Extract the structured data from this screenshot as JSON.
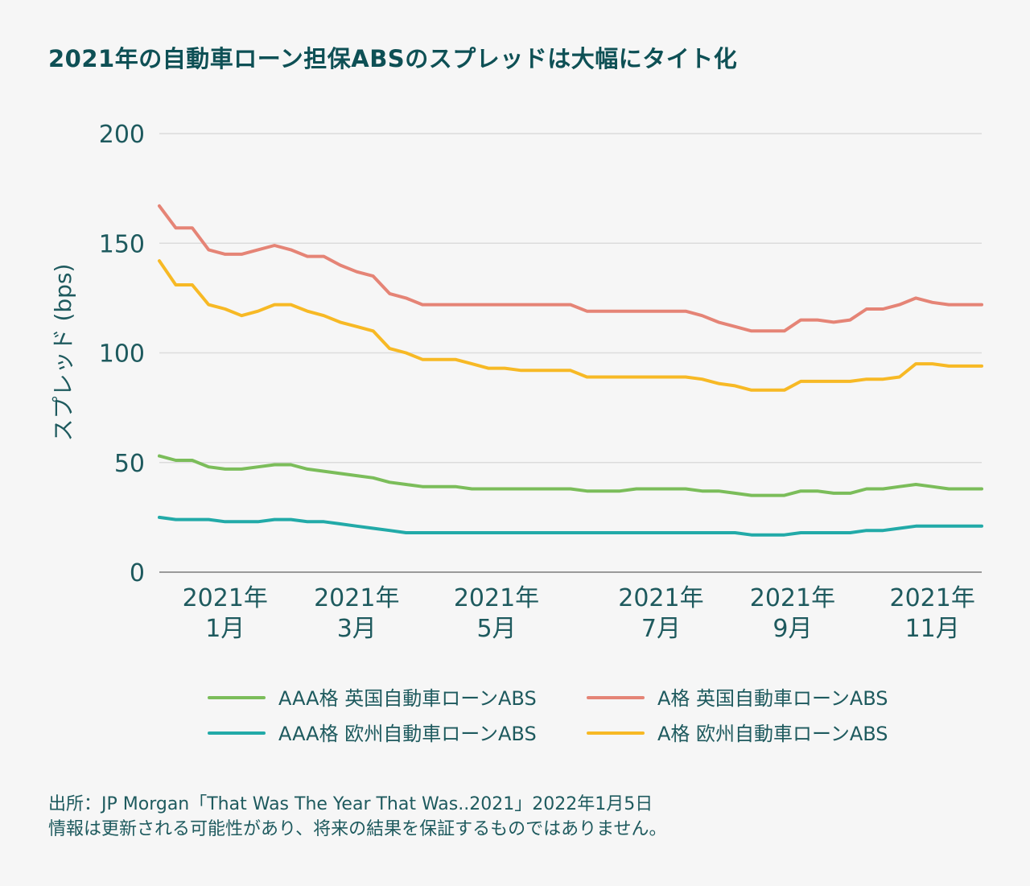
{
  "title": "2021年の自動車ローン担保ABSのスプレッドは大幅にタイト化",
  "source": {
    "line1": "出所：JP Morgan「That Was The Year That Was..2021」2022年1月5日",
    "line2": "情報は更新される可能性があり、将来の結果を保証するものではありません。"
  },
  "chart_data": {
    "type": "line",
    "title": "2021年の自動車ローン担保ABSのスプレッドは大幅にタイト化",
    "ylabel": "スプレッド (bps)",
    "xlabel": "",
    "ylim": [
      0,
      200
    ],
    "yticks": [
      "0",
      "50",
      "100",
      "150",
      "200"
    ],
    "x_range": [
      0,
      50
    ],
    "xticks": [
      {
        "x": 4,
        "line1": "2021年",
        "line2": "1月"
      },
      {
        "x": 12,
        "line1": "2021年",
        "line2": "3月"
      },
      {
        "x": 20.5,
        "line1": "2021年",
        "line2": "5月"
      },
      {
        "x": 30.5,
        "line1": "2021年",
        "line2": "7月"
      },
      {
        "x": 38.5,
        "line1": "2021年",
        "line2": "9月"
      },
      {
        "x": 47,
        "line1": "2021年",
        "line2": "11月"
      }
    ],
    "grid": true,
    "legend_position": "bottom",
    "series": [
      {
        "name": "AAA格 英国自動車ローンABS",
        "color": "#7bbd5a",
        "x": [
          0,
          1,
          2,
          3,
          4,
          5,
          6,
          7,
          8,
          9,
          10,
          11,
          12,
          13,
          14,
          15,
          16,
          17,
          18,
          19,
          20,
          21,
          22,
          23,
          24,
          25,
          26,
          27,
          28,
          29,
          30,
          31,
          32,
          33,
          34,
          35,
          36,
          37,
          38,
          39,
          40,
          41,
          42,
          43,
          44,
          45,
          46,
          47,
          48,
          49,
          50
        ],
        "values": [
          53,
          51,
          51,
          48,
          47,
          47,
          48,
          49,
          49,
          47,
          46,
          45,
          44,
          43,
          41,
          40,
          39,
          39,
          39,
          38,
          38,
          38,
          38,
          38,
          38,
          38,
          37,
          37,
          37,
          38,
          38,
          38,
          38,
          37,
          37,
          36,
          35,
          35,
          35,
          37,
          37,
          36,
          36,
          38,
          38,
          39,
          40,
          39,
          38,
          38,
          38
        ]
      },
      {
        "name": "AAA格 欧州自動車ローンABS",
        "color": "#22aaa8",
        "x": [
          0,
          1,
          2,
          3,
          4,
          5,
          6,
          7,
          8,
          9,
          10,
          11,
          12,
          13,
          14,
          15,
          16,
          17,
          18,
          19,
          20,
          21,
          22,
          23,
          24,
          25,
          26,
          27,
          28,
          29,
          30,
          31,
          32,
          33,
          34,
          35,
          36,
          37,
          38,
          39,
          40,
          41,
          42,
          43,
          44,
          45,
          46,
          47,
          48,
          49,
          50
        ],
        "values": [
          25,
          24,
          24,
          24,
          23,
          23,
          23,
          24,
          24,
          23,
          23,
          22,
          21,
          20,
          19,
          18,
          18,
          18,
          18,
          18,
          18,
          18,
          18,
          18,
          18,
          18,
          18,
          18,
          18,
          18,
          18,
          18,
          18,
          18,
          18,
          18,
          17,
          17,
          17,
          18,
          18,
          18,
          18,
          19,
          19,
          20,
          21,
          21,
          21,
          21,
          21
        ]
      },
      {
        "name": "A格 英国自動車ローンABS",
        "color": "#e58476",
        "x": [
          0,
          1,
          2,
          3,
          4,
          5,
          6,
          7,
          8,
          9,
          10,
          11,
          12,
          13,
          14,
          15,
          16,
          17,
          18,
          19,
          20,
          21,
          22,
          23,
          24,
          25,
          26,
          27,
          28,
          29,
          30,
          31,
          32,
          33,
          34,
          35,
          36,
          37,
          38,
          39,
          40,
          41,
          42,
          43,
          44,
          45,
          46,
          47,
          48,
          49,
          50
        ],
        "values": [
          167,
          157,
          157,
          147,
          145,
          145,
          147,
          149,
          147,
          144,
          144,
          140,
          137,
          135,
          127,
          125,
          122,
          122,
          122,
          122,
          122,
          122,
          122,
          122,
          122,
          122,
          119,
          119,
          119,
          119,
          119,
          119,
          119,
          117,
          114,
          112,
          110,
          110,
          110,
          115,
          115,
          114,
          115,
          120,
          120,
          122,
          125,
          123,
          122,
          122,
          122
        ]
      },
      {
        "name": "A格 欧州自動車ローンABS",
        "color": "#f7b925",
        "x": [
          0,
          1,
          2,
          3,
          4,
          5,
          6,
          7,
          8,
          9,
          10,
          11,
          12,
          13,
          14,
          15,
          16,
          17,
          18,
          19,
          20,
          21,
          22,
          23,
          24,
          25,
          26,
          27,
          28,
          29,
          30,
          31,
          32,
          33,
          34,
          35,
          36,
          37,
          38,
          39,
          40,
          41,
          42,
          43,
          44,
          45,
          46,
          47,
          48,
          49,
          50
        ],
        "values": [
          142,
          131,
          131,
          122,
          120,
          117,
          119,
          122,
          122,
          119,
          117,
          114,
          112,
          110,
          102,
          100,
          97,
          97,
          97,
          95,
          93,
          93,
          92,
          92,
          92,
          92,
          89,
          89,
          89,
          89,
          89,
          89,
          89,
          88,
          86,
          85,
          83,
          83,
          83,
          87,
          87,
          87,
          87,
          88,
          88,
          89,
          95,
          95,
          94,
          94,
          94
        ]
      }
    ]
  }
}
